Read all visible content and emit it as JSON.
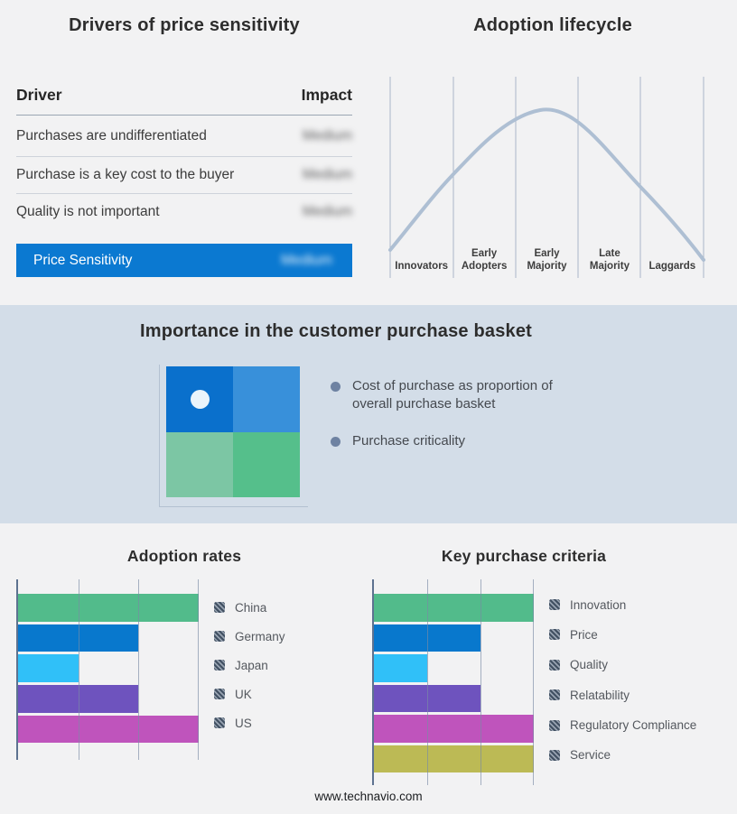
{
  "page": {
    "background": "#f2f2f3",
    "band_background": "#d3dde8",
    "footer_text": "www.technavio.com"
  },
  "colors": {
    "accent_blue": "#0b79d1",
    "curve": "#aebfd3",
    "plot_axis": "#5d7290",
    "gridline": "#a9b2c4"
  },
  "basket": {
    "title": "Importance in the customer purchase basket",
    "bullets": [
      "Cost of purchase as proportion of overall purchase basket",
      "Purchase criticality"
    ],
    "quadrant_colors": {
      "top_left": "#0a70cc",
      "top_right": "#3890da",
      "bottom_left": "#7cc6a4",
      "bottom_right": "#55bf8b"
    },
    "marker": "white dot centered in top-left quadrant",
    "marker_color": "#eaf4fb"
  },
  "chart_data": [
    {
      "type": "table",
      "title": "Drivers of price sensitivity",
      "columns": [
        "Driver",
        "Impact"
      ],
      "rows": [
        [
          "Purchases are undifferentiated",
          "Medium"
        ],
        [
          "Purchase is a key cost to the buyer",
          "Medium"
        ],
        [
          "Quality is not important",
          "Medium"
        ]
      ],
      "highlight_row": [
        "Price Sensitivity",
        "Medium"
      ],
      "highlight_color": "#0b79d1",
      "impact_values_blurred": true
    },
    {
      "type": "line",
      "title": "Adoption lifecycle",
      "categories": [
        "Innovators",
        "Early Adopters",
        "Early Majority",
        "Late Majority",
        "Laggards"
      ],
      "x_boundaries": [
        0,
        1,
        2,
        3,
        4,
        5
      ],
      "curve_height_norm_at_boundaries": [
        0.14,
        0.52,
        0.78,
        0.74,
        0.45,
        0.09
      ],
      "peak": {
        "x": 2.4,
        "height_norm": 0.83
      },
      "line_color": "#aebfd3",
      "grid": "vertical-gridlines-only",
      "xlabel": "",
      "ylabel": ""
    },
    {
      "type": "bar",
      "title": "Adoption rates",
      "orientation": "horizontal",
      "categories": [
        "China",
        "Germany",
        "Japan",
        "UK",
        "US"
      ],
      "values": [
        3,
        2,
        1,
        2,
        3
      ],
      "xlim": [
        0,
        3
      ],
      "value_units": "relative gridline units (no numeric axis labels shown)",
      "colors": [
        "#52bb8b",
        "#0878cd",
        "#30c0f8",
        "#6e53be",
        "#bf54bc"
      ],
      "legend_position": "right",
      "legend_swatch_style": "gray diagonal hatch"
    },
    {
      "type": "bar",
      "title": "Key purchase criteria",
      "orientation": "horizontal",
      "categories": [
        "Innovation",
        "Price",
        "Quality",
        "Relatability",
        "Regulatory Compliance",
        "Service"
      ],
      "values": [
        3,
        2,
        1,
        2,
        3,
        3
      ],
      "xlim": [
        0,
        3
      ],
      "value_units": "relative gridline units (no numeric axis labels shown)",
      "colors": [
        "#52bb8b",
        "#0878cd",
        "#30c0f8",
        "#6e53be",
        "#bf54bc",
        "#bcba55"
      ],
      "legend_position": "right",
      "legend_swatch_style": "gray diagonal hatch"
    }
  ]
}
